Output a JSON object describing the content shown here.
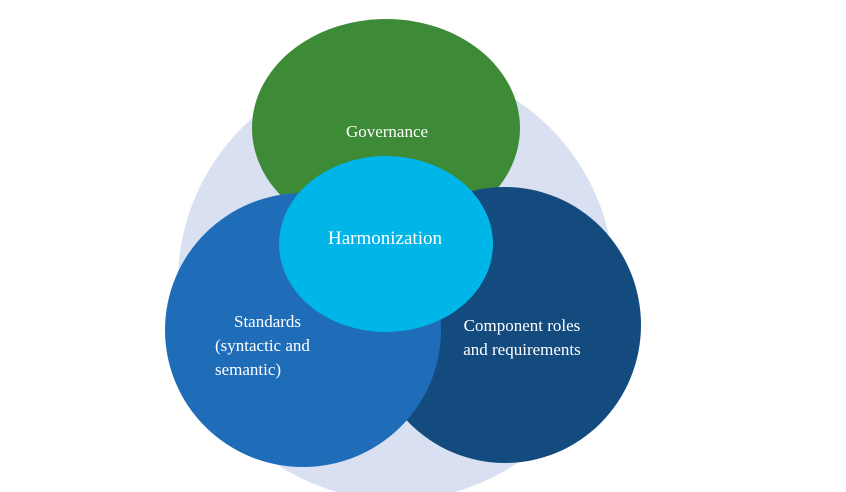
{
  "diagram": {
    "background_circle": {
      "color": "#d9e0f1"
    },
    "circles": {
      "governance": {
        "label": "Governance",
        "color": "#3d8b37"
      },
      "standards": {
        "lines": [
          "Standards",
          "(syntactic and",
          "semantic)"
        ],
        "color": "#1f6db8"
      },
      "component": {
        "lines": [
          "Component roles",
          "and requirements"
        ],
        "color": "#134b7f"
      },
      "harmonization": {
        "label": "Harmonization",
        "color": "#00b5e8"
      }
    }
  }
}
